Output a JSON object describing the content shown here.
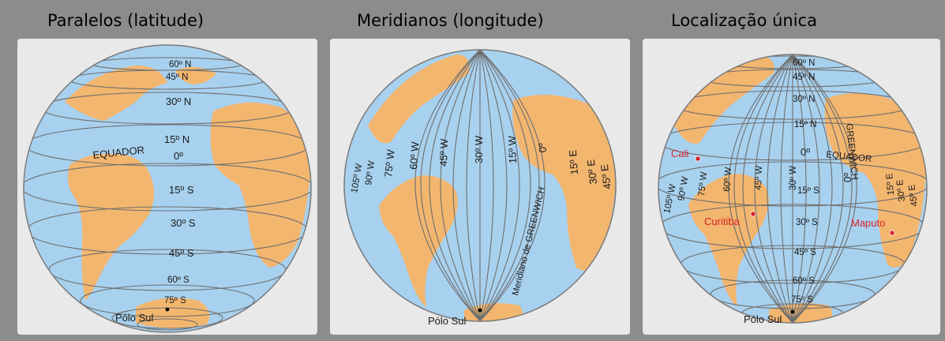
{
  "panels": [
    {
      "title": "Paralelos (latitude)",
      "labels": {
        "n60": "60º N",
        "n45": "45º N",
        "n30": "30º N",
        "n15": "15º N",
        "equador": "EQUADOR",
        "zero": "0º",
        "s15": "15º S",
        "s30": "30º S",
        "s45": "45º S",
        "s60": "60º S",
        "s75": "75º S",
        "polo": "Pólo Sul"
      }
    },
    {
      "title": "Meridianos (longitude)",
      "labels": {
        "w105": "105º W",
        "w90": "90º W",
        "w75": "75º W",
        "w60": "60º W",
        "w45": "45º W",
        "w30": "30º W",
        "w15": "15º W",
        "zero": "0º",
        "e15": "15º E",
        "e30": "30º E",
        "e45": "45º E",
        "greenwich": "Meridiano de GREENWICH",
        "polo": "Pólo Sul"
      }
    },
    {
      "title": "Localização única",
      "labels": {
        "n60": "60º N",
        "n45": "45º N",
        "n30": "30º N",
        "n15": "15º N",
        "zero": "0º",
        "equador": "EQUADOR",
        "greenwich": "GREENWICH",
        "s15": "15º S",
        "s30": "30º S",
        "s45": "45º S",
        "s60": "60º S",
        "s75": "75º S",
        "w105": "105º W",
        "w90": "90º W",
        "w75": "75º W",
        "w60": "60º W",
        "w45": "45º W",
        "w30": "30º W",
        "e15": "15º E",
        "e30": "30º E",
        "e45": "45º E",
        "polo": "Pólo Sul"
      },
      "cities": {
        "cali": "Cali",
        "curitiba": "Curitiba",
        "maputo": "Maputo"
      }
    }
  ],
  "colors": {
    "ocean": "#a8d1ef",
    "land": "#f3b66f",
    "city": "#d6232a",
    "background": "#8c8c8c"
  }
}
